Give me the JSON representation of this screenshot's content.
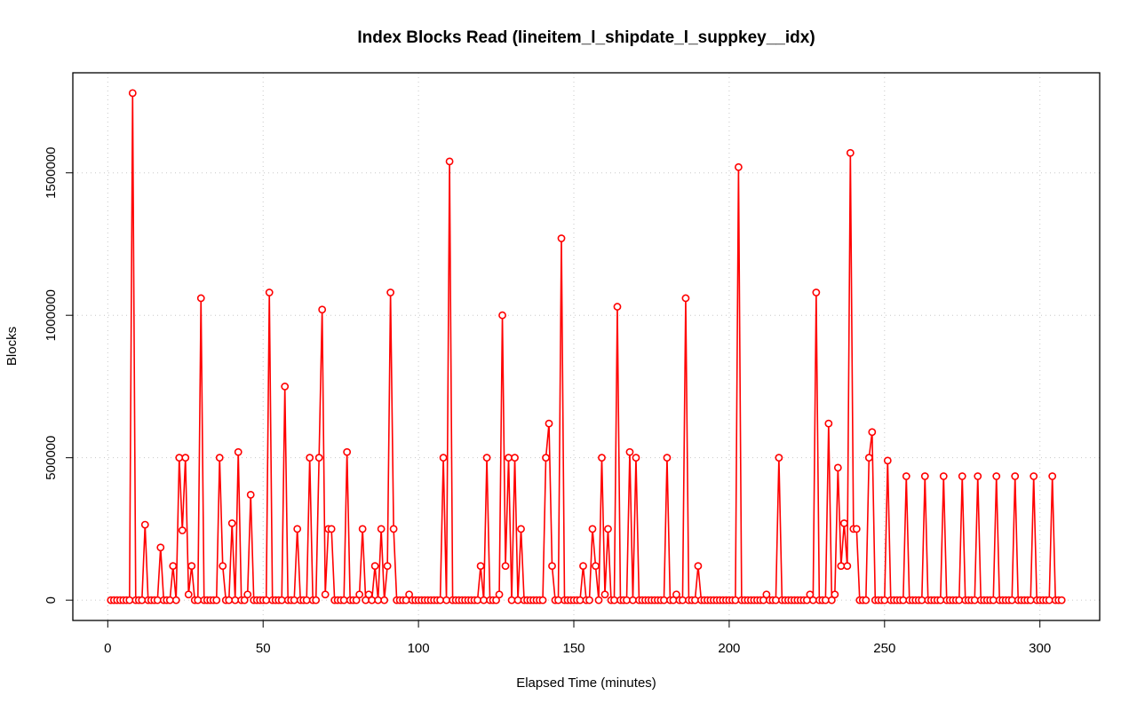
{
  "chart_data": {
    "type": "line",
    "title": "Index Blocks Read (lineitem_l_shipdate_l_suppkey__idx)",
    "x_label": "Elapsed Time (minutes)",
    "y_label": "Blocks",
    "color": "#ff0000",
    "grid": true,
    "xlim": [
      -11.24,
      319.24
    ],
    "ylim": [
      -71200,
      1851200
    ],
    "xticks": [
      0,
      50,
      100,
      150,
      200,
      250,
      300
    ],
    "yticks": [
      0,
      500000,
      1000000,
      1500000
    ],
    "x": [
      1,
      2,
      3,
      4,
      5,
      6,
      7,
      8,
      9,
      10,
      11,
      12,
      13,
      14,
      15,
      16,
      17,
      18,
      19,
      20,
      21,
      22,
      23,
      24,
      25,
      26,
      27,
      28,
      29,
      30,
      31,
      32,
      33,
      34,
      35,
      36,
      37,
      38,
      39,
      40,
      41,
      42,
      43,
      44,
      45,
      46,
      47,
      48,
      49,
      50,
      51,
      52,
      53,
      54,
      55,
      56,
      57,
      58,
      59,
      60,
      61,
      62,
      63,
      64,
      65,
      66,
      67,
      68,
      69,
      70,
      71,
      72,
      73,
      74,
      75,
      76,
      77,
      78,
      79,
      80,
      81,
      82,
      83,
      84,
      85,
      86,
      87,
      88,
      89,
      90,
      91,
      92,
      93,
      94,
      95,
      96,
      97,
      98,
      99,
      100,
      101,
      102,
      103,
      104,
      105,
      106,
      107,
      108,
      109,
      110,
      111,
      112,
      113,
      114,
      115,
      116,
      117,
      118,
      119,
      120,
      121,
      122,
      123,
      124,
      125,
      126,
      127,
      128,
      129,
      130,
      131,
      132,
      133,
      134,
      135,
      136,
      137,
      138,
      139,
      140,
      141,
      142,
      143,
      144,
      145,
      146,
      147,
      148,
      149,
      150,
      151,
      152,
      153,
      154,
      155,
      156,
      157,
      158,
      159,
      160,
      161,
      162,
      163,
      164,
      165,
      166,
      167,
      168,
      169,
      170,
      171,
      172,
      173,
      174,
      175,
      176,
      177,
      178,
      179,
      180,
      181,
      182,
      183,
      184,
      185,
      186,
      187,
      188,
      189,
      190,
      191,
      192,
      193,
      194,
      195,
      196,
      197,
      198,
      199,
      200,
      201,
      202,
      203,
      204,
      205,
      206,
      207,
      208,
      209,
      210,
      211,
      212,
      213,
      214,
      215,
      216,
      217,
      218,
      219,
      220,
      221,
      222,
      223,
      224,
      225,
      226,
      227,
      228,
      229,
      230,
      231,
      232,
      233,
      234,
      235,
      236,
      237,
      238,
      239,
      240,
      241,
      242,
      243,
      244,
      245,
      246,
      247,
      248,
      249,
      250,
      251,
      252,
      253,
      254,
      255,
      256,
      257,
      258,
      259,
      260,
      261,
      262,
      263,
      264,
      265,
      266,
      267,
      268,
      269,
      270,
      271,
      272,
      273,
      274,
      275,
      276,
      277,
      278,
      279,
      280,
      281,
      282,
      283,
      284,
      285,
      286,
      287,
      288,
      289,
      290,
      291,
      292,
      293,
      294,
      295,
      296,
      297,
      298,
      299,
      300,
      301,
      302,
      303,
      304,
      305,
      306,
      307
    ],
    "values": [
      0,
      0,
      0,
      0,
      0,
      0,
      0,
      1780000,
      0,
      0,
      0,
      265000,
      0,
      0,
      0,
      0,
      185000,
      0,
      0,
      0,
      120000,
      0,
      500000,
      245000,
      500000,
      20000,
      120000,
      0,
      0,
      1060000,
      0,
      0,
      0,
      0,
      0,
      500000,
      120000,
      0,
      0,
      270000,
      0,
      520000,
      0,
      0,
      20000,
      370000,
      0,
      0,
      0,
      0,
      0,
      1080000,
      0,
      0,
      0,
      0,
      750000,
      0,
      0,
      0,
      250000,
      0,
      0,
      0,
      500000,
      0,
      0,
      500000,
      1020000,
      20000,
      250000,
      250000,
      0,
      0,
      0,
      0,
      520000,
      0,
      0,
      0,
      20000,
      250000,
      0,
      20000,
      0,
      120000,
      0,
      250000,
      0,
      120000,
      1080000,
      250000,
      0,
      0,
      0,
      0,
      20000,
      0,
      0,
      0,
      0,
      0,
      0,
      0,
      0,
      0,
      0,
      500000,
      0,
      1540000,
      0,
      0,
      0,
      0,
      0,
      0,
      0,
      0,
      0,
      120000,
      0,
      500000,
      0,
      0,
      0,
      20000,
      1000000,
      120000,
      500000,
      0,
      500000,
      0,
      250000,
      0,
      0,
      0,
      0,
      0,
      0,
      0,
      500000,
      620000,
      120000,
      0,
      0,
      1270000,
      0,
      0,
      0,
      0,
      0,
      0,
      120000,
      0,
      0,
      250000,
      120000,
      0,
      500000,
      20000,
      250000,
      0,
      0,
      1030000,
      0,
      0,
      0,
      520000,
      0,
      500000,
      0,
      0,
      0,
      0,
      0,
      0,
      0,
      0,
      0,
      500000,
      0,
      0,
      20000,
      0,
      0,
      1060000,
      0,
      0,
      0,
      120000,
      0,
      0,
      0,
      0,
      0,
      0,
      0,
      0,
      0,
      0,
      0,
      0,
      1520000,
      0,
      0,
      0,
      0,
      0,
      0,
      0,
      0,
      20000,
      0,
      0,
      0,
      500000,
      0,
      0,
      0,
      0,
      0,
      0,
      0,
      0,
      0,
      20000,
      0,
      1080000,
      0,
      0,
      0,
      620000,
      0,
      20000,
      465000,
      120000,
      270000,
      120000,
      1570000,
      250000,
      250000,
      0,
      0,
      0,
      500000,
      590000,
      0,
      0,
      0,
      0,
      490000,
      0,
      0,
      0,
      0,
      0,
      435000,
      0,
      0,
      0,
      0,
      0,
      435000,
      0,
      0,
      0,
      0,
      0,
      435000,
      0,
      0,
      0,
      0,
      0,
      435000,
      0,
      0,
      0,
      0,
      435000,
      0,
      0,
      0,
      0,
      0,
      435000,
      0,
      0,
      0,
      0,
      0,
      435000,
      0,
      0,
      0,
      0,
      0,
      435000,
      0,
      0,
      0,
      0,
      0,
      435000,
      0,
      0,
      0
    ]
  }
}
